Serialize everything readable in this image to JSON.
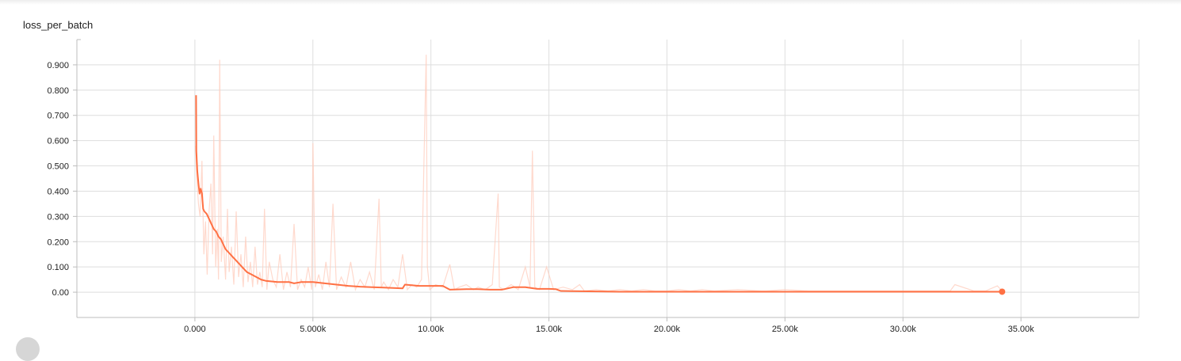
{
  "chart_data": {
    "type": "line",
    "title": "loss_per_batch",
    "xlabel": "",
    "ylabel": "",
    "xlim": [
      -5000,
      40000
    ],
    "ylim": [
      -0.1,
      1.0
    ],
    "x_ticks": [
      0,
      5000,
      10000,
      15000,
      20000,
      25000,
      30000,
      35000
    ],
    "x_tick_labels": [
      "0.000",
      "5.000k",
      "10.00k",
      "15.00k",
      "20.00k",
      "25.00k",
      "30.00k",
      "35.00k"
    ],
    "y_ticks": [
      0,
      0.1,
      0.2,
      0.3,
      0.4,
      0.5,
      0.6,
      0.7,
      0.8,
      0.9
    ],
    "y_tick_labels": [
      "0.00",
      "0.100",
      "0.200",
      "0.300",
      "0.400",
      "0.500",
      "0.600",
      "0.700",
      "0.800",
      "0.900"
    ],
    "grid": true,
    "legend": "none",
    "series": [
      {
        "role": "smoothed",
        "color": "#ff7043",
        "x": [
          50,
          60,
          100,
          150,
          200,
          250,
          300,
          350,
          400,
          500,
          600,
          700,
          800,
          900,
          1000,
          1100,
          1200,
          1300,
          1400,
          1500,
          1600,
          1700,
          1800,
          1900,
          2000,
          2200,
          2400,
          2600,
          2800,
          3000,
          3500,
          4000,
          4200,
          4500,
          5000,
          5500,
          6000,
          6500,
          7000,
          7500,
          8000,
          8800,
          8900,
          9500,
          10000,
          10500,
          10800,
          11500,
          12000,
          12500,
          13000,
          13500,
          14000,
          14500,
          15000,
          15300,
          15500,
          16000,
          17000,
          18000,
          20000,
          22000,
          25000,
          28000,
          30000,
          32000,
          34000,
          34200
        ],
        "y": [
          0.78,
          0.56,
          0.48,
          0.43,
          0.39,
          0.41,
          0.39,
          0.33,
          0.32,
          0.31,
          0.29,
          0.27,
          0.25,
          0.24,
          0.22,
          0.21,
          0.19,
          0.17,
          0.16,
          0.15,
          0.14,
          0.13,
          0.12,
          0.11,
          0.1,
          0.08,
          0.07,
          0.06,
          0.05,
          0.045,
          0.04,
          0.04,
          0.035,
          0.04,
          0.04,
          0.035,
          0.03,
          0.025,
          0.022,
          0.02,
          0.018,
          0.015,
          0.03,
          0.025,
          0.025,
          0.025,
          0.01,
          0.012,
          0.012,
          0.01,
          0.01,
          0.02,
          0.02,
          0.013,
          0.013,
          0.012,
          0.005,
          0.004,
          0.003,
          0.002,
          0.002,
          0.002,
          0.002,
          0.002,
          0.002,
          0.002,
          0.002,
          0.002
        ]
      },
      {
        "role": "raw",
        "color": "#ffccbc",
        "x": [
          30,
          80,
          150,
          220,
          300,
          380,
          450,
          520,
          600,
          680,
          750,
          800,
          880,
          950,
          1000,
          1050,
          1120,
          1200,
          1300,
          1380,
          1450,
          1550,
          1650,
          1750,
          1850,
          1950,
          2050,
          2150,
          2250,
          2350,
          2450,
          2550,
          2650,
          2750,
          2850,
          2950,
          3050,
          3150,
          3300,
          3450,
          3600,
          3750,
          3900,
          4050,
          4200,
          4350,
          4500,
          4650,
          4800,
          4950,
          5000,
          5100,
          5250,
          5400,
          5550,
          5700,
          5850,
          6000,
          6200,
          6400,
          6600,
          6800,
          7000,
          7200,
          7400,
          7600,
          7800,
          7900,
          8000,
          8200,
          8400,
          8600,
          8800,
          9000,
          9200,
          9400,
          9600,
          9800,
          9850,
          9950,
          10200,
          10500,
          10800,
          11000,
          11200,
          11500,
          11800,
          12000,
          12300,
          12600,
          12850,
          12900,
          13100,
          13400,
          13700,
          14000,
          14200,
          14300,
          14400,
          14600,
          14900,
          15200,
          15600,
          16000,
          16300,
          16500,
          17000,
          17500,
          18000,
          18500,
          19000,
          19500,
          20000,
          20500,
          21000,
          21500,
          22000,
          23000,
          24000,
          24200,
          25000,
          26000,
          27000,
          28000,
          29000,
          30000,
          31000,
          32000,
          32200,
          33000,
          33500,
          34000,
          34200
        ],
        "y": [
          0.58,
          0.45,
          0.35,
          0.3,
          0.52,
          0.15,
          0.28,
          0.07,
          0.32,
          0.43,
          0.15,
          0.62,
          0.1,
          0.25,
          0.05,
          0.92,
          0.12,
          0.22,
          0.05,
          0.33,
          0.08,
          0.18,
          0.03,
          0.32,
          0.06,
          0.15,
          0.02,
          0.22,
          0.04,
          0.12,
          0.02,
          0.18,
          0.03,
          0.08,
          0.02,
          0.33,
          0.01,
          0.12,
          0.05,
          0.02,
          0.15,
          0.01,
          0.08,
          0.02,
          0.27,
          0.01,
          0.05,
          0.02,
          0.1,
          0.01,
          0.59,
          0.02,
          0.07,
          0.01,
          0.12,
          0.02,
          0.35,
          0.01,
          0.06,
          0.02,
          0.12,
          0.01,
          0.05,
          0.02,
          0.08,
          0.01,
          0.37,
          0.02,
          0.04,
          0.01,
          0.05,
          0.02,
          0.15,
          0.01,
          0.03,
          0.02,
          0.05,
          0.94,
          0.1,
          0.01,
          0.03,
          0.02,
          0.11,
          0.01,
          0.02,
          0.03,
          0.01,
          0.02,
          0.01,
          0.03,
          0.39,
          0.02,
          0.01,
          0.03,
          0.01,
          0.1,
          0.02,
          0.56,
          0.02,
          0.01,
          0.1,
          0.01,
          0.02,
          0.01,
          0.03,
          0.005,
          0.01,
          0.005,
          0.01,
          0.005,
          0.01,
          0.005,
          0.005,
          0.01,
          0.005,
          0.01,
          0.005,
          0.01,
          0.005,
          0.005,
          0.01,
          0.005,
          0.005,
          0.005,
          0.005,
          0.005,
          0.005,
          0.005,
          0.03,
          0.005,
          0.005,
          0.025,
          0.005
        ]
      }
    ],
    "last_point": {
      "x": 34200,
      "y": 0.002
    }
  }
}
